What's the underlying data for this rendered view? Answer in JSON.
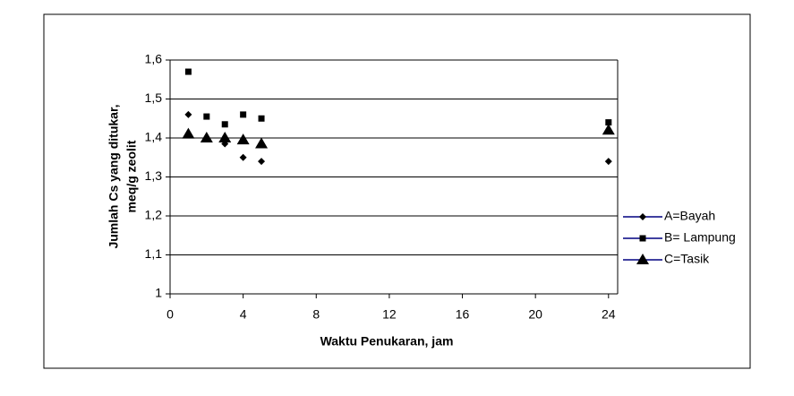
{
  "chart_data": {
    "type": "scatter",
    "x_label": "Waktu Penukaran, jam",
    "y_label": [
      "Jumlah Cs yang ditukar,",
      "meq/g zeolit"
    ],
    "xlim": [
      0,
      24.5
    ],
    "xticks": [
      0,
      4,
      8,
      12,
      16,
      20,
      24
    ],
    "ylim": [
      1,
      1.6
    ],
    "yticks": [
      1,
      {
        "value": 1.1,
        "label": "1,1"
      },
      {
        "value": 1.2,
        "label": "1,2"
      },
      {
        "value": 1.3,
        "label": "1,3"
      },
      {
        "value": 1.4,
        "label": "1,4"
      },
      {
        "value": 1.5,
        "label": "1,5"
      },
      {
        "value": 1.6,
        "label": "1,6"
      }
    ],
    "grid": true,
    "legend": "right",
    "series": [
      {
        "name": "A=Bayah",
        "color": "#000000",
        "legend_line_color": "#000080",
        "marker": "diamond",
        "x": [
          1,
          3,
          4,
          5,
          24
        ],
        "values": [
          1.46,
          1.385,
          1.35,
          1.34,
          1.34
        ]
      },
      {
        "name": "B= Lampung",
        "color": "#000000",
        "legend_line_color": "#000080",
        "marker": "square",
        "x": [
          1,
          2,
          3,
          4,
          5,
          24
        ],
        "values": [
          1.57,
          1.455,
          1.435,
          1.46,
          1.45,
          1.44
        ]
      },
      {
        "name": "C=Tasik",
        "color": "#000000",
        "legend_line_color": "#000080",
        "marker": "triangle",
        "x": [
          1,
          2,
          3,
          4,
          5,
          24
        ],
        "values": [
          1.41,
          1.4,
          1.4,
          1.395,
          1.385,
          1.42
        ]
      }
    ]
  }
}
